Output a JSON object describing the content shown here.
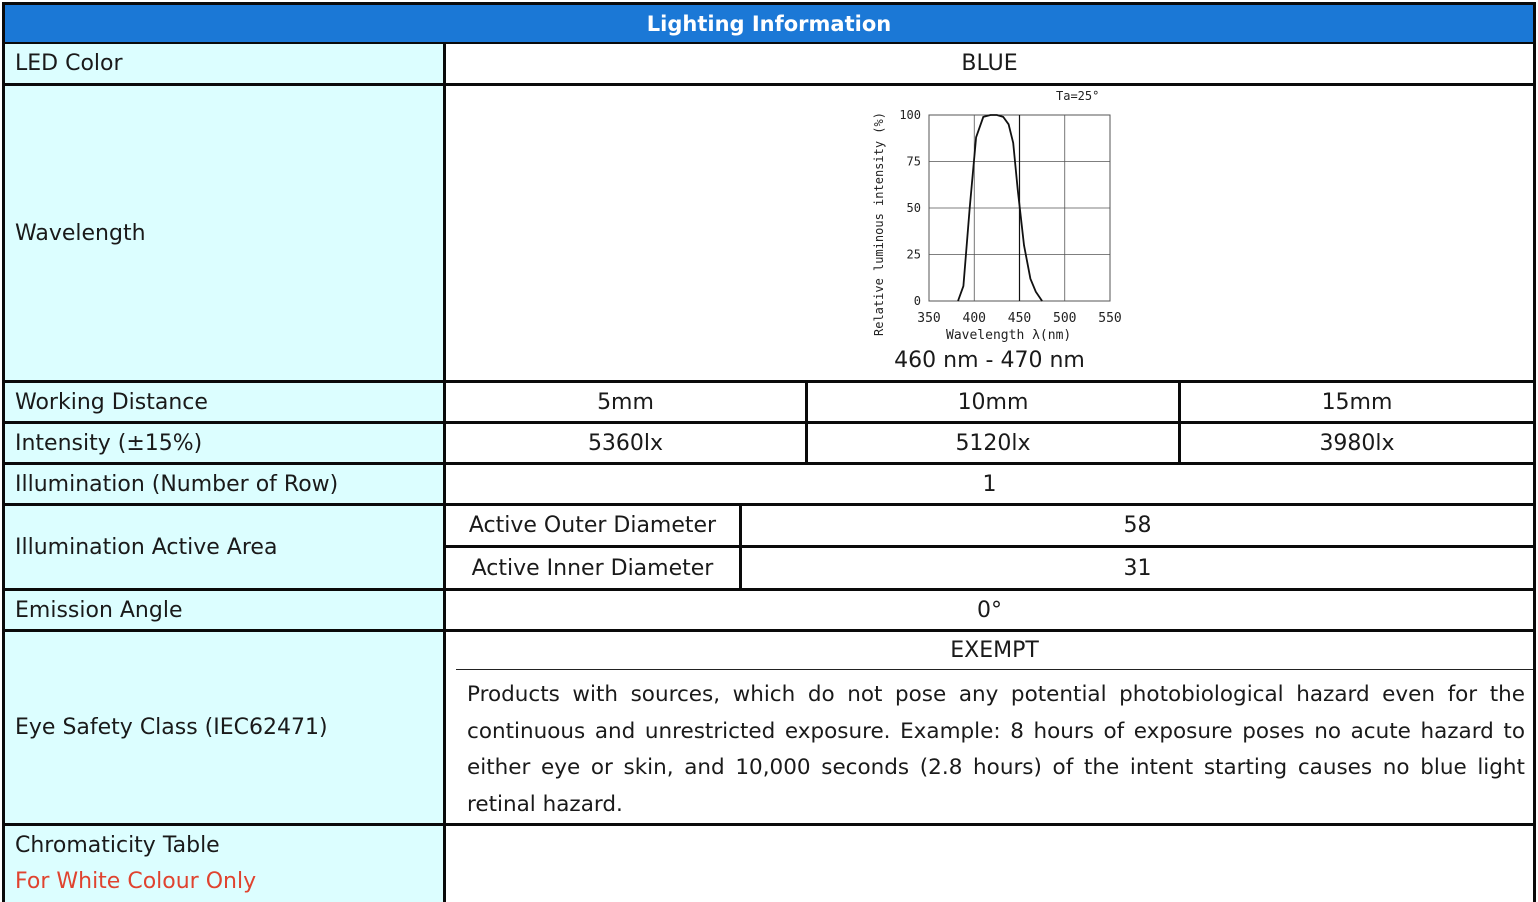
{
  "header": {
    "title": "Lighting Information"
  },
  "rows": {
    "led_color": {
      "label": "LED Color",
      "value": "BLUE"
    },
    "wavelength": {
      "label": "Wavelength",
      "range": "460 nm - 470 nm"
    },
    "working_distance": {
      "label": "Working Distance",
      "values": [
        "5mm",
        "10mm",
        "15mm"
      ]
    },
    "intensity": {
      "label": "Intensity (±15%)",
      "values": [
        "5360lx",
        "5120lx",
        "3980lx"
      ]
    },
    "illumination_rows": {
      "label": "Illumination (Number of Row)",
      "value": "1"
    },
    "active_area": {
      "label": "Illumination Active Area",
      "outer_label": "Active Outer Diameter",
      "outer_value": "58",
      "inner_label": "Active Inner Diameter",
      "inner_value": "31"
    },
    "emission_angle": {
      "label": "Emission Angle",
      "value": "0°"
    },
    "eye_safety": {
      "label": "Eye Safety Class (IEC62471)",
      "class": "EXEMPT",
      "description": "Products with sources, which do not pose any potential photobiological hazard even for the continuous and unrestricted exposure. Example: 8 hours of exposure poses no acute hazard to either eye or skin, and 10,000 seconds (2.8 hours) of the intent starting causes no blue light retinal hazard."
    },
    "chromaticity": {
      "label": "Chromaticity Table",
      "note": "For White Colour Only",
      "value": ""
    }
  },
  "chart_data": {
    "type": "line",
    "xlabel": "Wavelength λ(nm)",
    "ylabel": "Relative luminous intensity (%)",
    "annotation": "Ta=25°",
    "x_ticks": [
      "350",
      "400",
      "450",
      "500",
      "550"
    ],
    "y_ticks": [
      "0",
      "25",
      "50",
      "75",
      "100"
    ],
    "xlim": [
      350,
      550
    ],
    "ylim": [
      0,
      100
    ],
    "grid": true,
    "marker_line_x": 450,
    "series": [
      {
        "x": [
          382,
          388,
          395,
          402,
          410,
          418,
          425,
          432,
          438,
          443,
          448,
          455,
          462,
          468,
          475
        ],
        "y": [
          0,
          8,
          50,
          88,
          99,
          100,
          100,
          99,
          95,
          85,
          60,
          30,
          12,
          5,
          0
        ]
      }
    ],
    "colors": {
      "curve": "#111111",
      "grid": "#555555"
    }
  },
  "colors": {
    "header_bg": "#1b78d6",
    "label_bg": "#dcfeff",
    "note_red": "#e0432f",
    "border": "#0a0a0a"
  }
}
